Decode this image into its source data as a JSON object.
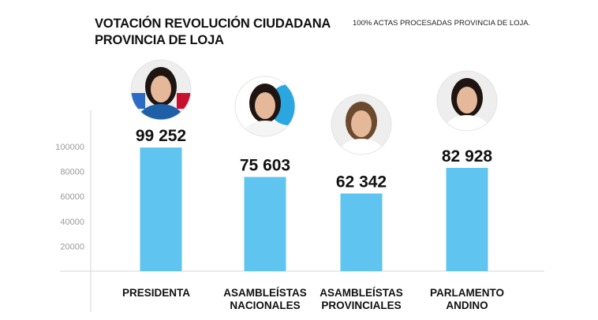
{
  "header": {
    "title_line1": "VOTACIÓN REVOLUCIÓN CIUDADANA",
    "title_line2": "PROVINCIA DE LOJA",
    "subtitle": "100% ACTAS PROCESADAS PROVINCIA DE LOJA."
  },
  "chart_data": {
    "type": "bar",
    "title": "VOTACIÓN REVOLUCIÓN CIUDADANA PROVINCIA DE LOJA",
    "subtitle": "100% ACTAS PROCESADAS PROVINCIA DE LOJA.",
    "categories": [
      [
        "PRESIDENTA"
      ],
      [
        "ASAMBLEÍSTAS",
        "NACIONALES"
      ],
      [
        "ASAMBLEÍSTAS",
        "PROVINCIALES"
      ],
      [
        "PARLAMENTO",
        "ANDINO"
      ]
    ],
    "values": [
      99252,
      75603,
      62342,
      82928
    ],
    "value_labels": [
      "99 252",
      "75 603",
      "62 342",
      "82 928"
    ],
    "yticks": [
      20000,
      40000,
      60000,
      80000,
      100000
    ],
    "ylim": [
      0,
      100000
    ],
    "grid": false,
    "bar_color": "#5fc4ef",
    "xlabel": "",
    "ylabel": ""
  },
  "avatars": [
    {
      "icon": "candidate-photo-presidenta",
      "accent": "#1f5fa8"
    },
    {
      "icon": "candidate-photo-asambleistas-nacionales",
      "accent": "#2aa7e0"
    },
    {
      "icon": "candidate-photo-asambleistas-provinciales",
      "accent": "#d9d9d9"
    },
    {
      "icon": "candidate-photo-parlamento-andino",
      "accent": "#e6e6e6"
    }
  ]
}
